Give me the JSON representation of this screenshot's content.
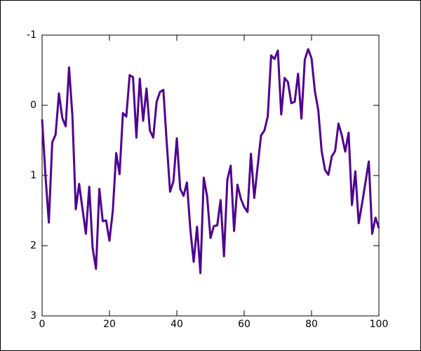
{
  "chart_data": {
    "type": "line",
    "color": "#500090",
    "y_inverted": true,
    "xlim": [
      0,
      100
    ],
    "xticks": [
      0,
      20,
      40,
      60,
      80,
      100
    ],
    "ylim": [
      -1,
      3
    ],
    "yticks": [
      -1,
      0,
      1,
      2,
      3
    ],
    "x": [
      0,
      1,
      2,
      3,
      4,
      5,
      6,
      7,
      8,
      9,
      10,
      11,
      12,
      13,
      14,
      15,
      16,
      17,
      18,
      19,
      20,
      21,
      22,
      23,
      24,
      25,
      26,
      27,
      28,
      29,
      30,
      31,
      32,
      33,
      34,
      35,
      36,
      37,
      38,
      39,
      40,
      41,
      42,
      43,
      44,
      45,
      46,
      47,
      48,
      49,
      50,
      51,
      52,
      53,
      54,
      55,
      56,
      57,
      58,
      59,
      60,
      61,
      62,
      63,
      64,
      65,
      66,
      67,
      68,
      69,
      70,
      71,
      72,
      73,
      74,
      75,
      76,
      77,
      78,
      79,
      80,
      81,
      82,
      83,
      84,
      85,
      86,
      87,
      88,
      89,
      90,
      91,
      92,
      93,
      94,
      95,
      96,
      97,
      98,
      99,
      100
    ],
    "values": [
      0.2,
      1.0,
      1.67,
      0.53,
      0.42,
      -0.17,
      0.18,
      0.3,
      -0.54,
      0.15,
      1.48,
      1.12,
      1.48,
      1.83,
      1.16,
      2.03,
      2.33,
      1.19,
      1.65,
      1.64,
      1.93,
      1.5,
      0.68,
      0.98,
      0.11,
      0.16,
      -0.43,
      -0.4,
      0.46,
      -0.38,
      0.22,
      -0.24,
      0.36,
      0.46,
      -0.05,
      -0.19,
      -0.22,
      0.53,
      1.23,
      1.08,
      0.47,
      1.19,
      1.29,
      1.1,
      1.76,
      2.23,
      1.73,
      2.39,
      1.03,
      1.3,
      1.89,
      1.72,
      1.71,
      1.35,
      2.15,
      1.06,
      0.86,
      1.79,
      1.13,
      1.33,
      1.45,
      1.52,
      0.69,
      1.32,
      0.87,
      0.43,
      0.36,
      0.16,
      -0.71,
      -0.66,
      -0.78,
      0.13,
      -0.39,
      -0.33,
      -0.03,
      -0.05,
      -0.45,
      0.19,
      -0.65,
      -0.8,
      -0.67,
      -0.2,
      0.07,
      0.65,
      0.92,
      0.99,
      0.73,
      0.65,
      0.26,
      0.43,
      0.66,
      0.39,
      1.42,
      0.94,
      1.68,
      1.4,
      1.1,
      0.8,
      1.83,
      1.6,
      1.75
    ]
  }
}
